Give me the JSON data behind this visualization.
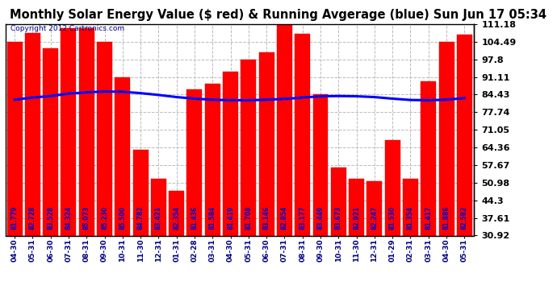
{
  "title": "Monthly Solar Energy Value ($ red) & Running Avgerage (blue) Sun Jun 17 05:34",
  "copyright": "Copyright 2012 Cartronics.com",
  "categories": [
    "04-30",
    "05-31",
    "06-30",
    "07-31",
    "08-31",
    "09-30",
    "10-31",
    "11-30",
    "12-31",
    "01-31",
    "02-28",
    "03-31",
    "04-30",
    "05-31",
    "06-30",
    "07-31",
    "08-31",
    "09-30",
    "10-31",
    "11-30",
    "12-31",
    "01-29",
    "02-31",
    "03-31",
    "04-30",
    "05-31"
  ],
  "bar_values": [
    104.49,
    107.88,
    102.16,
    109.8,
    109.8,
    104.49,
    91.11,
    63.4,
    52.5,
    47.8,
    86.5,
    88.5,
    93.19,
    97.8,
    100.4,
    111.18,
    107.6,
    84.43,
    56.67,
    52.47,
    51.5,
    67.05,
    52.47,
    89.4,
    104.49,
    107.1
  ],
  "bar_labels": [
    "81.779",
    "82.728",
    "83.528",
    "84.324",
    "85.073",
    "85.230",
    "85.500",
    "84.782",
    "83.421",
    "82.354",
    "81.436",
    "81.584",
    "81.419",
    "81.708",
    "83.146",
    "82.854",
    "83.177",
    "83.449",
    "83.673",
    "82.921",
    "82.247",
    "81.530",
    "81.354",
    "81.417",
    "81.886",
    "82.582"
  ],
  "running_avg": [
    82.5,
    83.3,
    83.9,
    84.8,
    85.3,
    85.6,
    85.5,
    85.0,
    84.3,
    83.5,
    82.9,
    82.5,
    82.3,
    82.3,
    82.5,
    82.8,
    83.3,
    83.8,
    83.9,
    83.8,
    83.5,
    82.9,
    82.4,
    82.3,
    82.5,
    83.1
  ],
  "ytick_values": [
    30.92,
    37.61,
    44.3,
    50.98,
    57.67,
    64.36,
    71.05,
    77.74,
    84.43,
    91.11,
    97.8,
    104.49,
    111.18
  ],
  "bar_color": "#FF0000",
  "line_color": "#0000FF",
  "label_color": "#0000CC",
  "bg_color": "#FFFFFF",
  "grid_color": "#BBBBBB",
  "title_color": "#000000",
  "copyright_color": "#00008B",
  "ymin": 30.92,
  "ymax": 111.18,
  "title_fontsize": 10.5,
  "copyright_fontsize": 6.5,
  "bar_label_fontsize": 5.5,
  "xtick_fontsize": 6.5,
  "ytick_fontsize": 8.0
}
